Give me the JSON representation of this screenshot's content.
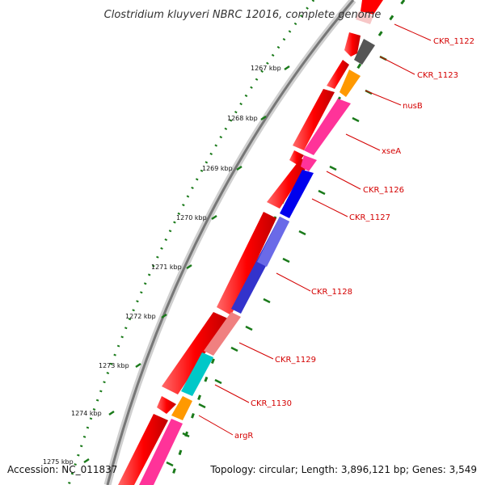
{
  "title": "Clostridium kluyveri NBRC 12016, complete genome",
  "accession": "Accession: NC_011837",
  "topology": "Topology: circular; Length: 3,896,121 bp; Genes: 3,549",
  "kbp_labels": [
    "1267 kbp",
    "1268 kbp",
    "1269 kbp",
    "1270 kbp",
    "1271 kbp",
    "1272 kbp",
    "1273 kbp",
    "1274 kbp",
    "1275 kbp"
  ],
  "genes": [
    {
      "name": "CKR_1122",
      "color": "#ff0000"
    },
    {
      "name": "CKR_1123",
      "color": "#555555"
    },
    {
      "name": "nusB",
      "color": "#ff9900"
    },
    {
      "name": "xseA",
      "color": "#ff3399"
    },
    {
      "name": "CKR_1126",
      "color": "#ff3399"
    },
    {
      "name": "CKR_1127",
      "color": "#0000ee"
    },
    {
      "name": "CKR_1128",
      "color": "#3333cc"
    },
    {
      "name": "CKR_1129",
      "color": "#f08080"
    },
    {
      "name": "CKR_1130",
      "color": "#00c8c8"
    },
    {
      "name": "argR",
      "color": "#ff9900"
    }
  ],
  "colors": {
    "cds_red": "#ff0000",
    "backbone": "#777777",
    "tick_green": "#1a7a1a",
    "label_red": "#d40000"
  }
}
